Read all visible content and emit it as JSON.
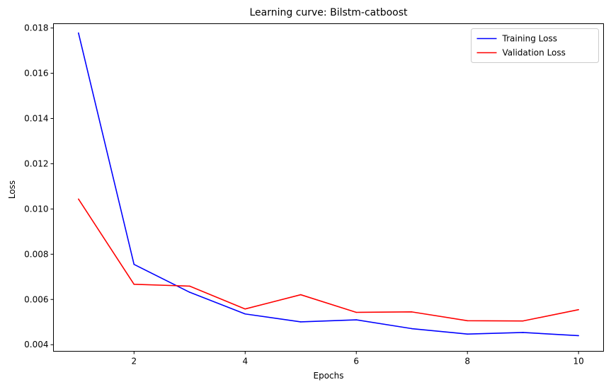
{
  "chart_data": {
    "type": "line",
    "title": "Learning curve: Bilstm-catboost",
    "xlabel": "Epochs",
    "ylabel": "Loss",
    "x": [
      1,
      2,
      3,
      4,
      5,
      6,
      7,
      8,
      9,
      10
    ],
    "xlim": [
      0.55,
      10.45
    ],
    "ylim": [
      0.00371,
      0.01819
    ],
    "xticks": [
      2,
      4,
      6,
      8,
      10
    ],
    "xtick_labels": [
      "2",
      "4",
      "6",
      "8",
      "10"
    ],
    "yticks": [
      0.004,
      0.006,
      0.008,
      0.01,
      0.012,
      0.014,
      0.016,
      0.018
    ],
    "ytick_labels": [
      "0.004",
      "0.006",
      "0.008",
      "0.010",
      "0.012",
      "0.014",
      "0.016",
      "0.018"
    ],
    "grid": false,
    "legend_position": "top-right",
    "series": [
      {
        "name": "Training Loss",
        "color": "#0000ff",
        "values": [
          0.01778,
          0.00755,
          0.00632,
          0.00536,
          0.00501,
          0.0051,
          0.00471,
          0.00447,
          0.00454,
          0.0044
        ]
      },
      {
        "name": "Validation Loss",
        "color": "#ff0000",
        "values": [
          0.01044,
          0.00667,
          0.00659,
          0.00558,
          0.00621,
          0.00543,
          0.00545,
          0.00506,
          0.00505,
          0.00555
        ]
      }
    ]
  }
}
